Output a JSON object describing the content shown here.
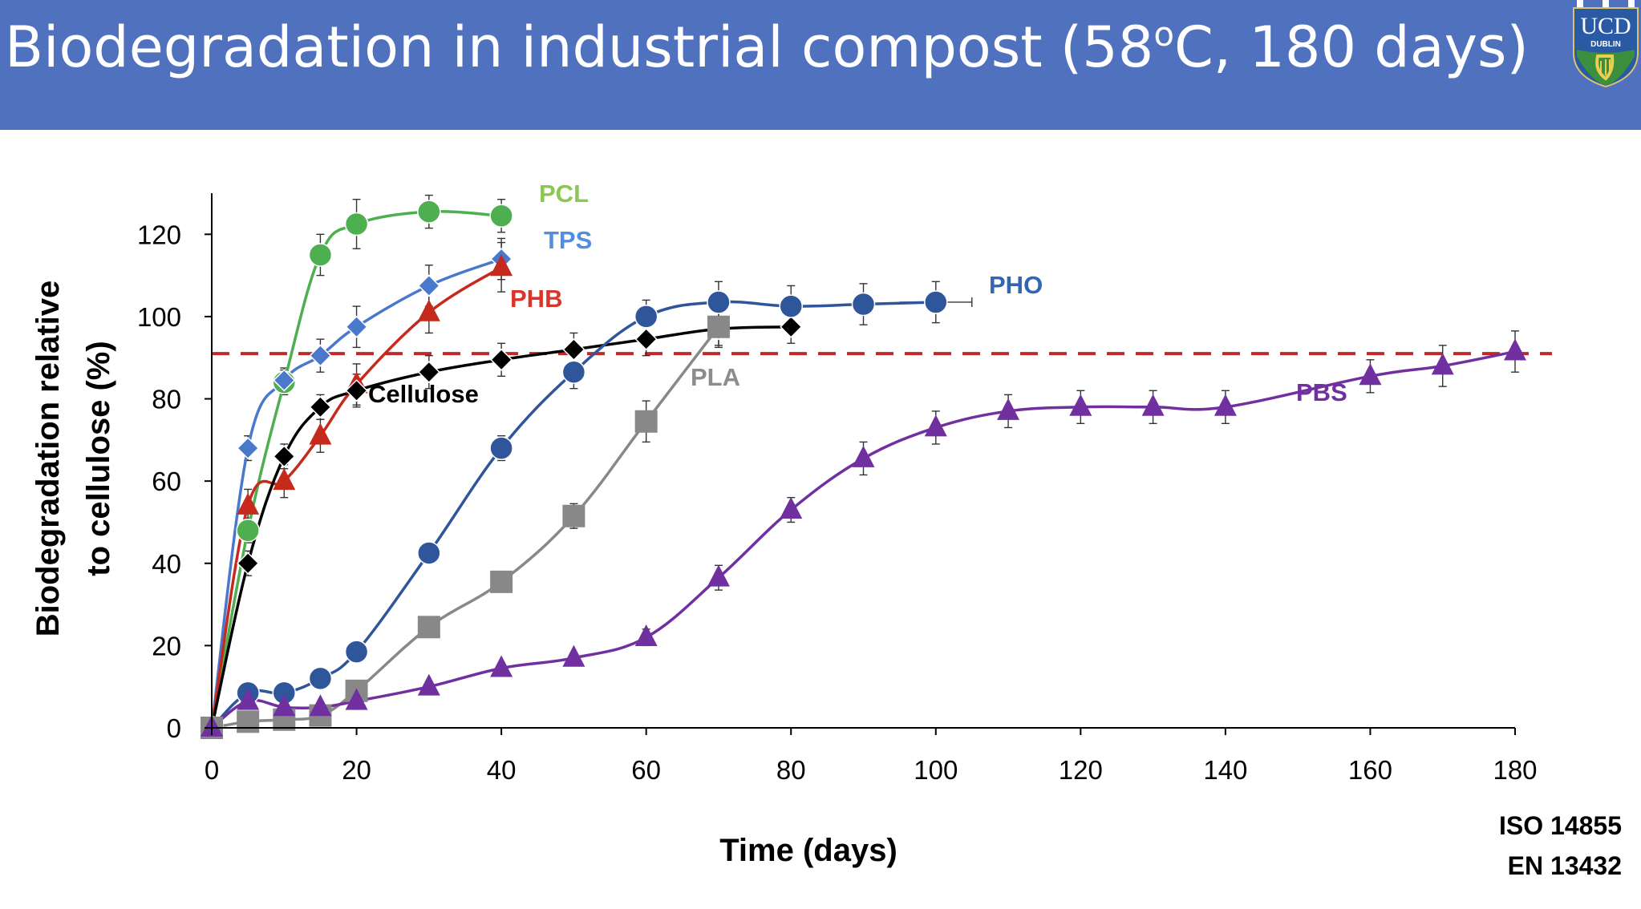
{
  "title": {
    "main": "Biodegradation in industrial compost (58",
    "sup": "o",
    "rest": "C, 180 days)"
  },
  "logo": {
    "text": "UCD",
    "subtext": "DUBLIN",
    "icon": "ucd-crest-harp"
  },
  "standards": [
    "ISO 14855",
    "EN 13432"
  ],
  "chart_data": {
    "type": "line",
    "xlabel": "Time (days)",
    "ylabel": [
      "Biodegradation relative",
      "to cellulose (%)"
    ],
    "xlim": [
      0,
      180
    ],
    "ylim": [
      0,
      130
    ],
    "xticks": [
      0,
      20,
      40,
      60,
      80,
      100,
      120,
      140,
      160,
      180
    ],
    "yticks": [
      0,
      20,
      40,
      60,
      80,
      100,
      120
    ],
    "grid": false,
    "reference_line": {
      "y": 91,
      "style": "dashed",
      "color": "#c0282a"
    },
    "series": [
      {
        "name": "PCL",
        "color": "#4eaf50",
        "label_color": "#8cc653",
        "marker": "circle",
        "x": [
          0,
          5,
          10,
          15,
          20,
          30,
          40
        ],
        "y": [
          0,
          48,
          84,
          115,
          122.5,
          125.5,
          124.5
        ],
        "err": [
          0,
          3,
          3,
          5,
          6,
          4,
          4
        ]
      },
      {
        "name": "TPS",
        "color": "#4a78cd",
        "label_color": "#4f8ee0",
        "marker": "diamond",
        "x": [
          0,
          5,
          10,
          15,
          20,
          30,
          40
        ],
        "y": [
          0,
          68,
          84.5,
          90.5,
          97.5,
          107.5,
          114
        ],
        "err": [
          0,
          3,
          3,
          4,
          5,
          5,
          5
        ]
      },
      {
        "name": "PHB",
        "color": "#c62a1c",
        "label_color": "#d9352a",
        "marker": "triangle",
        "x": [
          0,
          5,
          10,
          15,
          20,
          30,
          40
        ],
        "y": [
          0,
          54,
          60,
          71,
          83.5,
          101,
          112
        ],
        "err": [
          0,
          4,
          4,
          4,
          5,
          5,
          6
        ]
      },
      {
        "name": "Cellulose",
        "color": "#000000",
        "label_color": "#000000",
        "marker": "diamond",
        "x": [
          0,
          5,
          10,
          15,
          20,
          30,
          40,
          50,
          60,
          70,
          80
        ],
        "y": [
          0,
          40,
          66,
          78,
          82,
          86.5,
          89.5,
          92,
          94.5,
          97,
          97.5
        ],
        "err": [
          0,
          3,
          3,
          3,
          4,
          4,
          4,
          4,
          4,
          4,
          4
        ]
      },
      {
        "name": "PHO",
        "color": "#2f559b",
        "label_color": "#3266b0",
        "marker": "circle",
        "x": [
          0,
          5,
          10,
          15,
          20,
          30,
          40,
          50,
          60,
          70,
          80,
          90,
          100
        ],
        "y": [
          0,
          8.5,
          8.5,
          12,
          18.5,
          42.5,
          68,
          86.5,
          100,
          103.5,
          102.5,
          103,
          103.5
        ],
        "err": [
          0,
          1,
          1,
          1.5,
          1.5,
          2,
          3,
          4,
          4,
          5,
          5,
          5,
          5
        ]
      },
      {
        "name": "PLA",
        "color": "#888888",
        "label_color": "#8c8c8c",
        "marker": "square",
        "x": [
          0,
          5,
          10,
          15,
          20,
          30,
          40,
          50,
          60,
          70
        ],
        "y": [
          0,
          1.5,
          2,
          3,
          9,
          24.5,
          35.5,
          51.5,
          74.5,
          97.5
        ],
        "err": [
          0,
          1,
          1,
          1,
          1.5,
          2,
          2,
          3,
          5,
          5
        ]
      },
      {
        "name": "PBS",
        "color": "#7030a0",
        "label_color": "#7030a0",
        "marker": "triangle",
        "x": [
          0,
          5,
          10,
          15,
          20,
          30,
          40,
          50,
          60,
          70,
          80,
          90,
          100,
          110,
          120,
          130,
          140,
          160,
          170,
          180
        ],
        "y": [
          0,
          6.5,
          5,
          5,
          6.5,
          10,
          14.5,
          17,
          22,
          36.5,
          53,
          65.5,
          73,
          77,
          78,
          78,
          78,
          85.5,
          88,
          91.5
        ],
        "err": [
          0,
          1,
          1,
          1,
          1,
          1,
          1,
          1,
          2,
          3,
          3,
          4,
          4,
          4,
          4,
          4,
          4,
          4,
          5,
          5
        ]
      }
    ]
  }
}
